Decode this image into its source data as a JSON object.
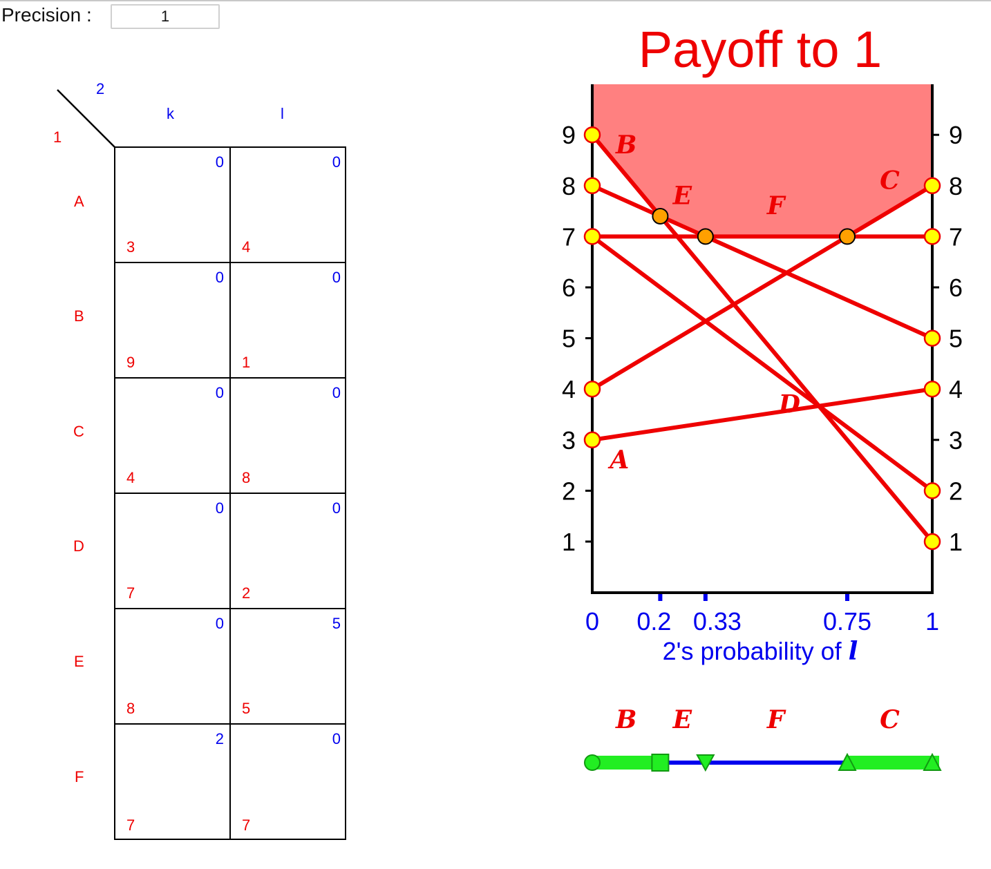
{
  "precision": {
    "label": "Precision :",
    "value": "1"
  },
  "game": {
    "player1_label": "1",
    "player2_label": "2",
    "columns": [
      "k",
      "l"
    ],
    "rows": [
      {
        "strategy": "A",
        "cells": [
          {
            "p1": "3",
            "p2": "0"
          },
          {
            "p1": "4",
            "p2": "0"
          }
        ]
      },
      {
        "strategy": "B",
        "cells": [
          {
            "p1": "9",
            "p2": "0"
          },
          {
            "p1": "1",
            "p2": "0"
          }
        ]
      },
      {
        "strategy": "C",
        "cells": [
          {
            "p1": "4",
            "p2": "0"
          },
          {
            "p1": "8",
            "p2": "0"
          }
        ]
      },
      {
        "strategy": "D",
        "cells": [
          {
            "p1": "7",
            "p2": "0"
          },
          {
            "p1": "2",
            "p2": "0"
          }
        ]
      },
      {
        "strategy": "E",
        "cells": [
          {
            "p1": "8",
            "p2": "0"
          },
          {
            "p1": "5",
            "p2": "5"
          }
        ]
      },
      {
        "strategy": "F",
        "cells": [
          {
            "p1": "7",
            "p2": "2"
          },
          {
            "p1": "7",
            "p2": "0"
          }
        ]
      }
    ]
  },
  "chart_data": {
    "type": "line",
    "title": "Payoff to 1",
    "xlabel_prefix": "2's probability of",
    "xlabel_var": "l",
    "xlim": [
      0,
      1
    ],
    "ylim": [
      0,
      10
    ],
    "yticks": [
      1,
      2,
      3,
      4,
      5,
      6,
      7,
      8,
      9
    ],
    "xticks": [
      {
        "value": 0,
        "label": "0"
      },
      {
        "value": 0.2,
        "label": "0.2"
      },
      {
        "value": 0.333,
        "label": "0.33"
      },
      {
        "value": 0.75,
        "label": "0.75"
      },
      {
        "value": 1,
        "label": "1"
      }
    ],
    "series": [
      {
        "name": "A",
        "y0": 3,
        "y1": 4
      },
      {
        "name": "B",
        "y0": 9,
        "y1": 1
      },
      {
        "name": "C",
        "y0": 4,
        "y1": 8
      },
      {
        "name": "D",
        "y0": 7,
        "y1": 2
      },
      {
        "name": "E",
        "y0": 8,
        "y1": 5
      },
      {
        "name": "F",
        "y0": 7,
        "y1": 7
      }
    ],
    "series_labels": [
      {
        "name": "B",
        "x": 0.1,
        "y": 8.8
      },
      {
        "name": "E",
        "x": 0.265,
        "y": 7.8
      },
      {
        "name": "F",
        "x": 0.54,
        "y": 7.6
      },
      {
        "name": "C",
        "x": 0.875,
        "y": 8.1
      },
      {
        "name": "D",
        "x": 0.58,
        "y": 3.7
      },
      {
        "name": "A",
        "x": 0.08,
        "y": 2.6
      }
    ],
    "upper_envelope": [
      {
        "x": 0,
        "y": 9
      },
      {
        "x": 0.2,
        "y": 7.4
      },
      {
        "x": 0.333,
        "y": 7
      },
      {
        "x": 0.75,
        "y": 7
      },
      {
        "x": 1,
        "y": 8
      }
    ],
    "envelope_fill": "#ff8080",
    "line_color": "#ee0000",
    "endpoint_color": "#ffff00",
    "kink_color": "#ffa000",
    "best_response": {
      "segments": [
        {
          "label": "B",
          "from": 0,
          "to": 0.2,
          "green": true
        },
        {
          "label": "E",
          "from": 0.2,
          "to": 0.333,
          "green": false
        },
        {
          "label": "F",
          "from": 0.333,
          "to": 0.75,
          "green": false
        },
        {
          "label": "C",
          "from": 0.75,
          "to": 1,
          "green": true
        }
      ],
      "markers": [
        {
          "x": 0,
          "shape": "circle"
        },
        {
          "x": 0.2,
          "shape": "square"
        },
        {
          "x": 0.333,
          "shape": "triangle-down"
        },
        {
          "x": 0.75,
          "shape": "triangle-up"
        },
        {
          "x": 1,
          "shape": "triangle-up"
        }
      ],
      "green_color": "#22ee22",
      "blue_color": "#0000ee"
    }
  }
}
